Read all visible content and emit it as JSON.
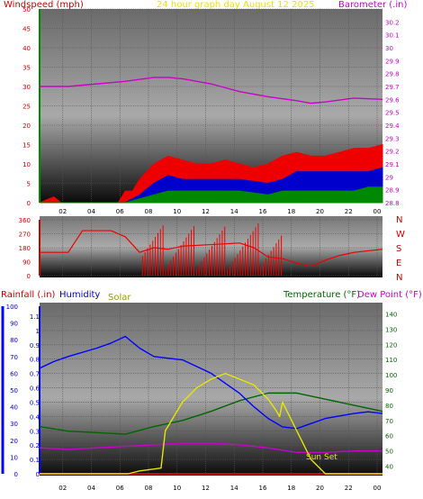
{
  "header": {
    "left": "Windspeed (mph)",
    "center": "24 hour graph day   August 12 2025",
    "right": "Barometer (.in)"
  },
  "mid_labels": [
    "N",
    "W",
    "S",
    "E",
    "N"
  ],
  "bottom_header": {
    "rain": "Rainfall (.in)",
    "humidity": "Humidity",
    "solar": "Solar",
    "temp": "Temperature (°F)",
    "dew": "Dew Point (°F)"
  },
  "annotation": "Sun Set",
  "colors": {
    "wind_label": "#cc0000",
    "title": "#e6e600",
    "baro": "#cc00cc",
    "wind_gust": "#ee0000",
    "wind_avg": "#0000cc",
    "wind_low": "#008800",
    "rain": "#0000ff",
    "humidity": "#0000ff",
    "solar": "#999900",
    "temp": "#006600",
    "dew": "#cc00cc"
  },
  "chart_data": [
    {
      "type": "line",
      "name": "wind-baro",
      "x_ticks": [
        "02",
        "04",
        "06",
        "08",
        "10",
        "12",
        "14",
        "16",
        "18",
        "20",
        "22",
        "00"
      ],
      "y_left_ticks": [
        "0",
        "5",
        "10",
        "15",
        "20",
        "25",
        "30",
        "35",
        "40",
        "45",
        "50"
      ],
      "y_left_range": [
        0,
        50
      ],
      "y_right_ticks": [
        "28.8",
        "28.9",
        "29",
        "29.1",
        "29.2",
        "29.3",
        "29.4",
        "29.5",
        "29.6",
        "29.7",
        "29.8",
        "29.9",
        "30",
        "30.1",
        "30.2"
      ],
      "y_right_range": [
        28.8,
        30.3
      ],
      "barometer": {
        "x": [
          0,
          2,
          4,
          6,
          8,
          9,
          10,
          12,
          14,
          16,
          18,
          19,
          20,
          22,
          24
        ],
        "y": [
          29.7,
          29.7,
          29.72,
          29.74,
          29.77,
          29.77,
          29.76,
          29.72,
          29.66,
          29.62,
          29.59,
          29.57,
          29.58,
          29.61,
          29.6
        ]
      },
      "gust": {
        "x": [
          0,
          1,
          1.5,
          2,
          5.5,
          6,
          6.5,
          7,
          8,
          9,
          10,
          11,
          12,
          13,
          14,
          15,
          16,
          17,
          18,
          19,
          20,
          21,
          22,
          23,
          24
        ],
        "y": [
          0,
          1.5,
          0,
          0,
          0,
          3,
          3,
          6,
          10,
          12,
          11,
          10,
          10,
          11,
          10,
          9,
          10,
          12,
          13,
          12,
          12,
          13,
          14,
          14,
          15
        ]
      },
      "average": {
        "x": [
          0,
          6,
          7,
          8,
          9,
          10,
          12,
          14,
          16,
          17,
          18,
          20,
          22,
          23,
          24
        ],
        "y": [
          0,
          0,
          2,
          5,
          7,
          6,
          6,
          6,
          5,
          6,
          8,
          8,
          8,
          8,
          9
        ]
      },
      "low": {
        "x": [
          0,
          6,
          7,
          8,
          9,
          10,
          12,
          14,
          16,
          17,
          18,
          20,
          22,
          23,
          24
        ],
        "y": [
          0,
          0,
          1,
          2,
          3,
          3,
          3,
          3,
          2,
          3,
          3,
          3,
          3,
          4,
          4
        ]
      }
    },
    {
      "type": "line",
      "name": "wind-direction",
      "y_ticks": [
        "0",
        "90",
        "180",
        "270",
        "360"
      ],
      "y_range": [
        0,
        360
      ],
      "direction": {
        "x": [
          0,
          2,
          3,
          5,
          6,
          7,
          8,
          9,
          10,
          12,
          14,
          15,
          16,
          17,
          18,
          19,
          20,
          21,
          22,
          23,
          24
        ],
        "y": [
          150,
          150,
          290,
          290,
          250,
          150,
          180,
          170,
          190,
          200,
          210,
          180,
          120,
          110,
          80,
          60,
          100,
          130,
          150,
          160,
          170
        ]
      }
    },
    {
      "type": "line",
      "name": "rain-humidity-solar-temp",
      "y_left_ticks": [
        "0",
        "0.1",
        "0.2",
        "0.3",
        "0.4",
        "0.5",
        "0.6",
        "0.7",
        "0.8",
        "0.9",
        "1",
        "1.1"
      ],
      "humidity_ticks": [
        "0",
        "10",
        "20",
        "30",
        "40",
        "50",
        "60",
        "70",
        "80",
        "90",
        "100"
      ],
      "y_right_ticks": [
        "40",
        "50",
        "60",
        "70",
        "80",
        "90",
        "100",
        "110",
        "120",
        "130",
        "140"
      ],
      "humidity": {
        "x": [
          0,
          1,
          2,
          4,
          5,
          6,
          7,
          8,
          10,
          12,
          14,
          15,
          16,
          17,
          18,
          19,
          20,
          22,
          23,
          24
        ],
        "y": [
          63,
          67,
          70,
          75,
          78,
          82,
          75,
          70,
          68,
          60,
          48,
          40,
          33,
          28,
          27,
          30,
          33,
          36,
          37,
          36
        ]
      },
      "temperature": {
        "x": [
          0,
          2,
          4,
          6,
          8,
          10,
          12,
          14,
          16,
          18,
          20,
          22,
          24
        ],
        "y": [
          66,
          63,
          62,
          61,
          66,
          70,
          76,
          83,
          88,
          88,
          84,
          80,
          76
        ]
      },
      "dewpoint": {
        "x": [
          0,
          2,
          4,
          6,
          8,
          10,
          12,
          14,
          16,
          18,
          20,
          22,
          24
        ],
        "y": [
          52,
          51,
          52,
          53,
          54,
          55,
          55,
          54,
          52,
          49,
          49,
          50,
          50
        ]
      },
      "solar": {
        "x": [
          0,
          6.2,
          7,
          8.5,
          8.8,
          10,
          11,
          12,
          13,
          14,
          15,
          16,
          16.5,
          16.8,
          17,
          18,
          19,
          20,
          24
        ],
        "y": [
          0,
          0,
          0.02,
          0.04,
          0.3,
          0.5,
          0.6,
          0.66,
          0.7,
          0.66,
          0.62,
          0.52,
          0.45,
          0.4,
          0.5,
          0.3,
          0.1,
          0,
          0
        ]
      },
      "rain": {
        "x": [
          0,
          24
        ],
        "y": [
          0,
          0
        ]
      }
    }
  ]
}
